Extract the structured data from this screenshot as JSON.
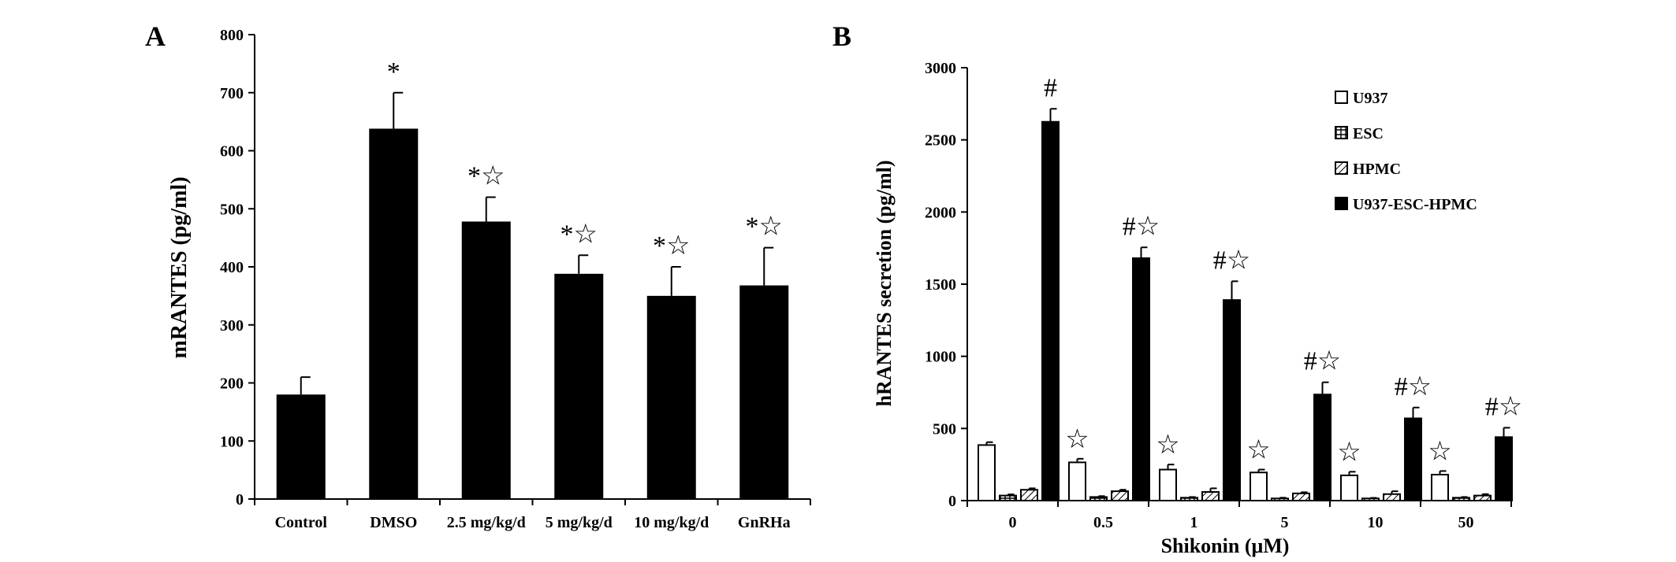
{
  "chart_data": [
    {
      "panel": "A",
      "type": "bar",
      "title": "",
      "xlabel": "",
      "ylabel": "mRANTES (pg/ml)",
      "ylim": [
        0,
        800
      ],
      "yticks": [
        0,
        100,
        200,
        300,
        400,
        500,
        600,
        700,
        800
      ],
      "categories": [
        "Control",
        "DMSO",
        "2.5 mg/kg/d",
        "5 mg/kg/d",
        "10 mg/kg/d",
        "GnRHa"
      ],
      "values": [
        180,
        638,
        478,
        388,
        350,
        368
      ],
      "errors": [
        30,
        62,
        42,
        32,
        50,
        65
      ],
      "annotations": [
        "",
        "*",
        "*☆",
        "*☆",
        "*☆",
        "*☆"
      ],
      "bar_color": "#000000"
    },
    {
      "panel": "B",
      "type": "bar",
      "title": "",
      "xlabel": "Shikonin (μM)",
      "ylabel": "hRANTES secretion (pg/ml)",
      "ylim": [
        0,
        3000
      ],
      "yticks": [
        0,
        500,
        1000,
        1500,
        2000,
        2500,
        3000
      ],
      "categories": [
        "0",
        "0.5",
        "1",
        "5",
        "10",
        "50"
      ],
      "legend_position": "top-right",
      "series": [
        {
          "name": "U937",
          "pattern": "open",
          "values": [
            385,
            265,
            215,
            195,
            175,
            180
          ],
          "errors": [
            20,
            25,
            35,
            20,
            25,
            25
          ]
        },
        {
          "name": "ESC",
          "pattern": "grid",
          "values": [
            35,
            25,
            20,
            15,
            15,
            20
          ],
          "errors": [
            8,
            6,
            5,
            5,
            4,
            5
          ]
        },
        {
          "name": "HPMC",
          "pattern": "hatch",
          "values": [
            75,
            65,
            60,
            50,
            45,
            35
          ],
          "errors": [
            10,
            10,
            25,
            8,
            20,
            10
          ]
        },
        {
          "name": "U937-ESC-HPMC",
          "pattern": "solid",
          "values": [
            2625,
            1680,
            1390,
            735,
            570,
            440
          ],
          "errors": [
            90,
            75,
            130,
            85,
            75,
            65
          ]
        }
      ],
      "annotations": [
        {
          "category": "0",
          "u937": "",
          "coculture": "#"
        },
        {
          "category": "0.5",
          "u937": "☆",
          "coculture": "#☆"
        },
        {
          "category": "1",
          "u937": "☆",
          "coculture": "#☆"
        },
        {
          "category": "5",
          "u937": "☆",
          "coculture": "#☆"
        },
        {
          "category": "10",
          "u937": "☆",
          "coculture": "#☆"
        },
        {
          "category": "50",
          "u937": "☆",
          "coculture": "#☆"
        }
      ]
    }
  ]
}
